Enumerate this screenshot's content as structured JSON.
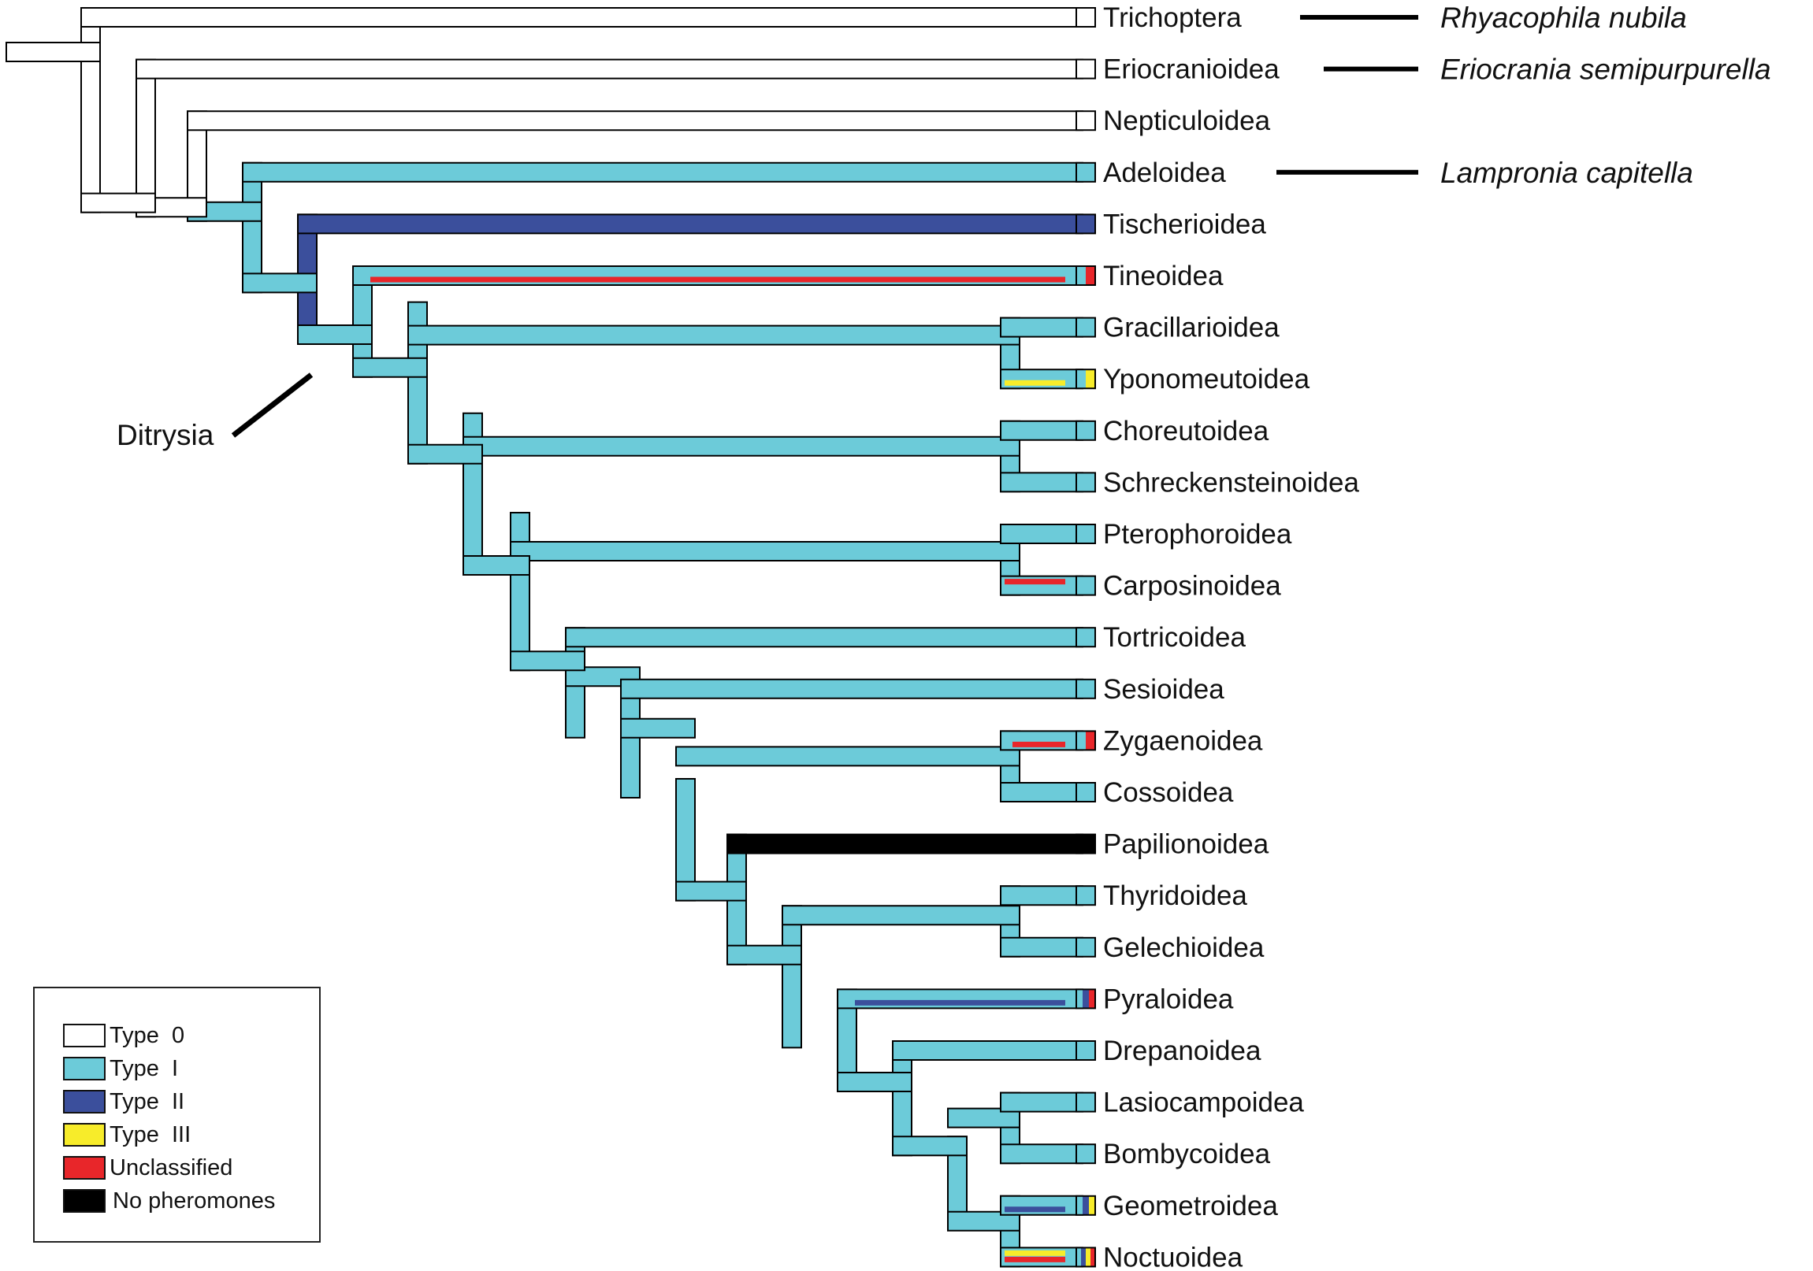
{
  "colors": {
    "type0": "#ffffff",
    "type1": "#6ccbd9",
    "type2": "#3b4f9c",
    "type3": "#f7ec2a",
    "unclassified": "#e8262a",
    "none": "#000000",
    "outline": "#000000"
  },
  "taxa": [
    {
      "name": "Trichoptera"
    },
    {
      "name": "Eriocranioidea"
    },
    {
      "name": "Nepticuloidea"
    },
    {
      "name": "Adeloidea"
    },
    {
      "name": "Tischerioidea"
    },
    {
      "name": "Tineoidea"
    },
    {
      "name": "Gracillarioidea"
    },
    {
      "name": "Yponomeutoidea"
    },
    {
      "name": "Choreutoidea"
    },
    {
      "name": "Schreckensteinoidea"
    },
    {
      "name": "Pterophoroidea"
    },
    {
      "name": "Carposinoidea"
    },
    {
      "name": "Tortricoidea"
    },
    {
      "name": "Sesioidea"
    },
    {
      "name": "Zygaenoidea"
    },
    {
      "name": "Cossoidea"
    },
    {
      "name": "Papilionoidea"
    },
    {
      "name": "Thyridoidea"
    },
    {
      "name": "Gelechioidea"
    },
    {
      "name": "Pyraloidea"
    },
    {
      "name": "Drepanoidea"
    },
    {
      "name": "Lasiocampoidea"
    },
    {
      "name": "Bombycoidea"
    },
    {
      "name": "Geometroidea"
    },
    {
      "name": "Noctuoidea"
    }
  ],
  "species": [
    {
      "name": "Rhyacophila nubila",
      "taxon": "Trichoptera"
    },
    {
      "name": "Eriocrania semipurpurella",
      "taxon": "Eriocranioidea"
    },
    {
      "name": "Lampronia capitella",
      "taxon": "Adeloidea"
    }
  ],
  "clade_label": "Ditrysia",
  "legend": {
    "items": [
      {
        "label": "Type  0",
        "color_key": "type0"
      },
      {
        "label": "Type  I",
        "color_key": "type1"
      },
      {
        "label": "Type  II",
        "color_key": "type2"
      },
      {
        "label": "Type  III",
        "color_key": "type3"
      },
      {
        "label": "Unclassified",
        "color_key": "unclassified"
      },
      {
        "label": "No pheromones",
        "color_key": "none"
      }
    ]
  }
}
